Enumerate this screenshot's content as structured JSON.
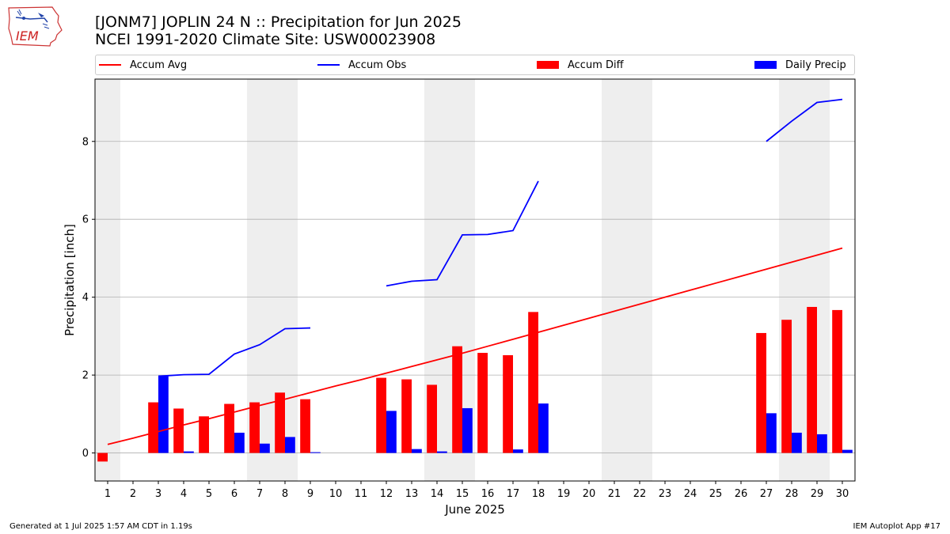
{
  "logo": {
    "text": "IEM"
  },
  "header": {
    "title": "[JONM7] JOPLIN 24 N :: Precipitation for Jun 2025",
    "subtitle": "NCEI 1991-2020 Climate Site: USW00023908"
  },
  "footer": {
    "left": "Generated at 1 Jul 2025 1:57 AM CDT in 1.19s",
    "right": "IEM Autoplot App #17"
  },
  "colors": {
    "avg": "#ff0000",
    "obs": "#0000ff",
    "diff": "#ff0000",
    "daily": "#0000ff",
    "weekend": "#eeeeee",
    "grid": "#b0b0b0"
  },
  "chart_data": {
    "type": "bar",
    "xlabel": "June 2025",
    "ylabel": "Precipitation [inch]",
    "xlim": [
      0.5,
      30.5
    ],
    "ylim": [
      -0.72,
      9.6
    ],
    "yticks": [
      0,
      2,
      4,
      6,
      8
    ],
    "grid": "y",
    "legend_placement": "top",
    "days": [
      1,
      2,
      3,
      4,
      5,
      6,
      7,
      8,
      9,
      10,
      11,
      12,
      13,
      14,
      15,
      16,
      17,
      18,
      19,
      20,
      21,
      22,
      23,
      24,
      25,
      26,
      27,
      28,
      29,
      30
    ],
    "weekend_bands": [
      [
        0.5,
        1.5
      ],
      [
        6.5,
        8.5
      ],
      [
        13.5,
        15.5
      ],
      [
        20.5,
        22.5
      ],
      [
        27.5,
        29.5
      ]
    ],
    "legend": [
      "Accum Avg",
      "Accum Obs",
      "Accum Diff",
      "Daily Precip"
    ],
    "series": [
      {
        "name": "Accum Avg",
        "kind": "line",
        "values": [
          0.22,
          0.38,
          0.55,
          0.72,
          0.88,
          1.05,
          1.22,
          1.38,
          1.55,
          1.72,
          1.88,
          2.05,
          2.22,
          2.39,
          2.56,
          2.74,
          2.92,
          3.1,
          3.28,
          3.46,
          3.64,
          3.82,
          4.0,
          4.18,
          4.36,
          4.54,
          4.72,
          4.9,
          5.08,
          5.26
        ]
      },
      {
        "name": "Accum Obs",
        "kind": "line",
        "values": [
          null,
          null,
          1.97,
          2.01,
          2.02,
          2.54,
          2.78,
          3.19,
          3.21,
          null,
          null,
          4.29,
          4.41,
          4.45,
          5.6,
          5.61,
          5.71,
          6.98,
          null,
          null,
          null,
          null,
          null,
          null,
          null,
          null,
          8.0,
          8.52,
          9.0,
          9.08
        ]
      },
      {
        "name": "Accum Diff",
        "kind": "bar",
        "values": [
          -0.22,
          0,
          1.3,
          1.14,
          0.94,
          1.26,
          1.3,
          1.55,
          1.38,
          0,
          0,
          1.93,
          1.89,
          1.75,
          2.74,
          2.57,
          2.51,
          3.62,
          0,
          0,
          0,
          0,
          0,
          0,
          0,
          0,
          3.08,
          3.42,
          3.75,
          3.67
        ]
      },
      {
        "name": "Daily Precip",
        "kind": "bar",
        "values": [
          0,
          0,
          1.97,
          0.04,
          0,
          0.52,
          0.24,
          0.41,
          0.02,
          0,
          0,
          1.08,
          0.1,
          0.04,
          1.15,
          0,
          0.09,
          1.27,
          0,
          0,
          0,
          0,
          0,
          0,
          0,
          0,
          1.02,
          0.52,
          0.48,
          0.08
        ]
      }
    ]
  }
}
